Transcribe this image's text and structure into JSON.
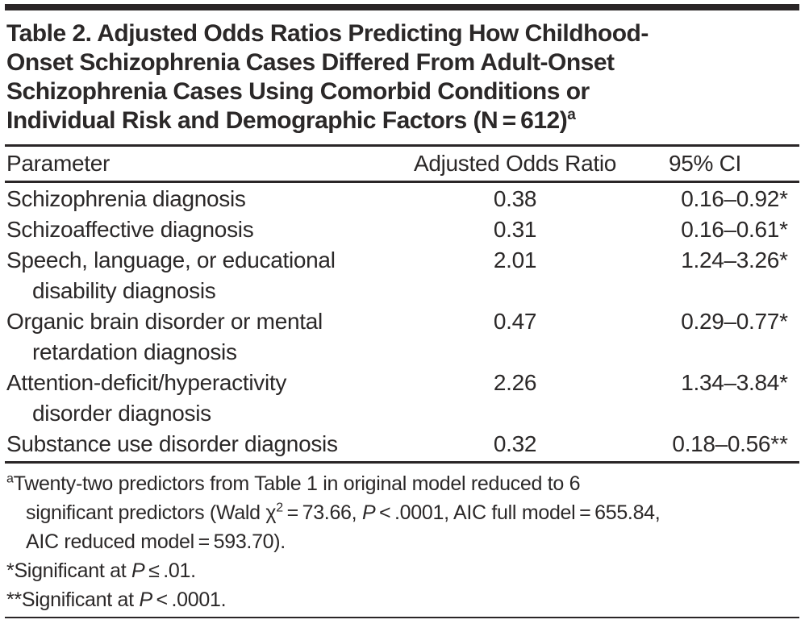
{
  "title": {
    "lines": [
      "Table 2. Adjusted Odds Ratios Predicting How Childhood-",
      "Onset Schizophrenia Cases Differed From Adult-Onset",
      "Schizophrenia Cases Using Comorbid Conditions or"
    ],
    "last_line": "Individual Risk and Demographic Factors (N = 612)",
    "superscript": "a"
  },
  "table": {
    "headers": [
      "Parameter",
      "Adjusted Odds Ratio",
      "95% CI"
    ],
    "rows": [
      {
        "param_lines": [
          "Schizophrenia diagnosis"
        ],
        "aor": "0.38",
        "ci": "0.16–0.92",
        "sig": "*"
      },
      {
        "param_lines": [
          "Schizoaffective diagnosis"
        ],
        "aor": "0.31",
        "ci": "0.16–0.61",
        "sig": "*"
      },
      {
        "param_lines": [
          "Speech, language, or educational",
          "disability diagnosis"
        ],
        "aor": "2.01",
        "ci": "1.24–3.26",
        "sig": "*"
      },
      {
        "param_lines": [
          "Organic brain disorder or mental",
          "retardation diagnosis"
        ],
        "aor": "0.47",
        "ci": "0.29–0.77",
        "sig": "*"
      },
      {
        "param_lines": [
          "Attention-deficit/hyperactivity",
          "disorder diagnosis"
        ],
        "aor": "2.26",
        "ci": "1.34–3.84",
        "sig": "*"
      },
      {
        "param_lines": [
          "Substance use disorder diagnosis"
        ],
        "aor": "0.32",
        "ci": "0.18–0.56",
        "sig": "**"
      }
    ]
  },
  "footnotes": {
    "note_a": {
      "marker": "a",
      "line1": "Twenty-two predictors from Table 1 in original model reduced to 6",
      "line2_pre": "significant predictors (Wald χ",
      "line2_sup": "2",
      "line2_mid": " = 73.66, ",
      "line2_p": "P",
      "line2_post": " < .0001, AIC full model = 655.84,",
      "line3": "AIC reduced model = 593.70)."
    },
    "star": {
      "marker": "*",
      "pre": "Significant at ",
      "p": "P",
      "post": " ≤ .01."
    },
    "double_star": {
      "marker": "**",
      "pre": "Significant at ",
      "p": "P",
      "post": " < .0001."
    }
  },
  "colors": {
    "rule": "#2a2627",
    "text": "#2b2828",
    "background": "#ffffff"
  }
}
